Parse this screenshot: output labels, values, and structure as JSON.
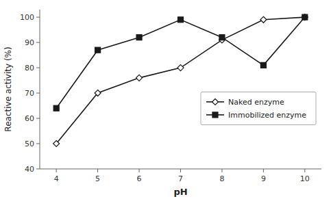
{
  "chart_data": {
    "type": "line",
    "x": [
      4,
      5,
      6,
      7,
      8,
      9,
      10
    ],
    "series": [
      {
        "name": "Naked enzyme",
        "color": "#1a1a1a",
        "marker": "open-diamond",
        "values": [
          50,
          70,
          76,
          80,
          91,
          99,
          100
        ]
      },
      {
        "name": "Immobilized enzyme",
        "color": "#1a1a1a",
        "marker": "square",
        "values": [
          64,
          87,
          92,
          99,
          92,
          81,
          100
        ]
      }
    ],
    "xlabel": "pH",
    "ylabel": "Reactive activity (%)",
    "xlim": [
      3.6,
      10.4
    ],
    "ylim": [
      40,
      103
    ],
    "xticks": [
      4,
      5,
      6,
      7,
      8,
      9,
      10
    ],
    "yticks": [
      40,
      50,
      60,
      70,
      80,
      90,
      100
    ],
    "grid": false,
    "legend": "right"
  }
}
